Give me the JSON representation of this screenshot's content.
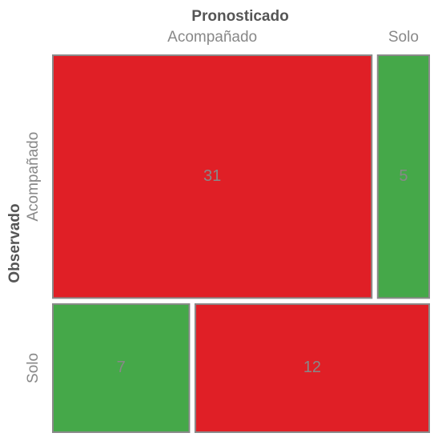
{
  "chart_data": {
    "type": "mosaic",
    "x_label": "Pronosticado",
    "y_label": "Observado",
    "columns": [
      "Acompañado",
      "Solo"
    ],
    "rows": [
      "Acompañado",
      "Solo"
    ],
    "values": [
      [
        31,
        5
      ],
      [
        7,
        12
      ]
    ],
    "colors": [
      [
        "#e01f26",
        "#45a849"
      ],
      [
        "#45a849",
        "#e01f26"
      ]
    ]
  }
}
